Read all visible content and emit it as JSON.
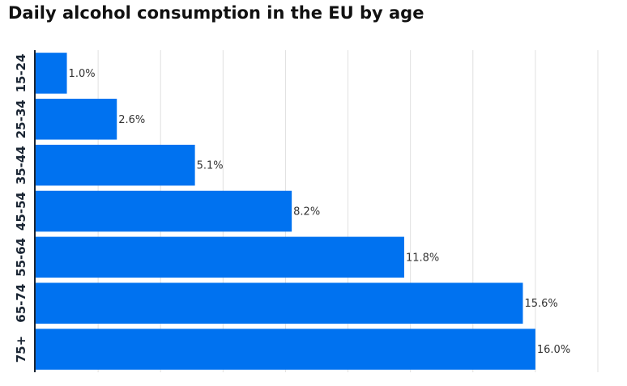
{
  "chart_data": {
    "type": "bar",
    "orientation": "horizontal",
    "title": "Daily alcohol consumption in the EU by age",
    "categories": [
      "15-24",
      "25-34",
      "35-44",
      "45-54",
      "55-64",
      "65-74",
      "75+"
    ],
    "values": [
      1.0,
      2.6,
      5.1,
      8.2,
      11.8,
      15.6,
      16.0
    ],
    "value_labels": [
      "1.0%",
      "2.6%",
      "5.1%",
      "8.2%",
      "11.8%",
      "15.6%",
      "16.0%"
    ],
    "xlabel": "",
    "ylabel": "",
    "xlim": [
      0,
      18
    ],
    "grid": true,
    "legend": "none",
    "bar_color": "#0072f0",
    "axis_color": "#1a2533",
    "grid_color": "#e0e0e0"
  }
}
